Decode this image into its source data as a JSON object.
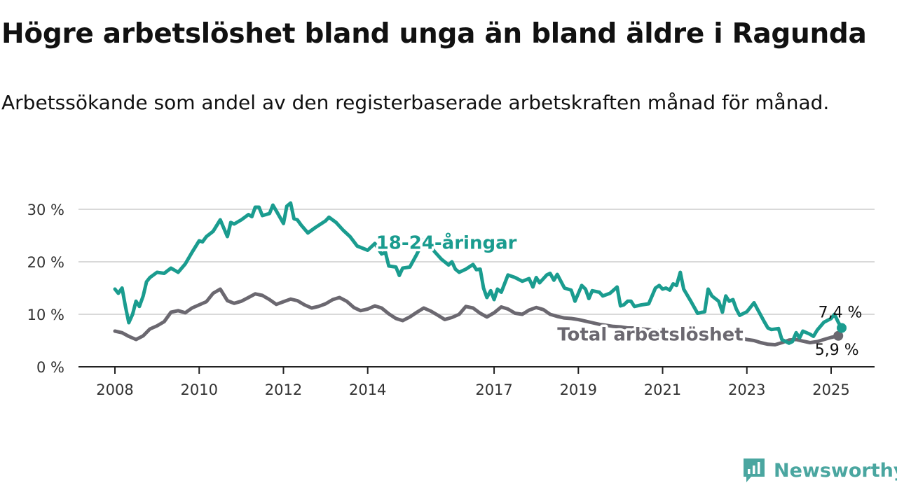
{
  "title": "Högre arbetslöshet bland unga än bland äldre i Ragunda",
  "subtitle": "Arbetssökande som andel av den registerbaserade arbetskraften månad för månad.",
  "brand": {
    "name": "Newsworthy",
    "icon": "newsworthy-logo-icon",
    "color": "#4aa6a0"
  },
  "chart_data": {
    "type": "line",
    "ylim": [
      0,
      30
    ],
    "xlim": [
      2008.0,
      2025.25
    ],
    "y_ticks": [
      {
        "v": 0,
        "label": "0 %"
      },
      {
        "v": 10,
        "label": "10 %"
      },
      {
        "v": 20,
        "label": "20 %"
      },
      {
        "v": 30,
        "label": "30 %"
      }
    ],
    "x_ticks": [
      {
        "v": 2008,
        "label": "2008"
      },
      {
        "v": 2010,
        "label": "2010"
      },
      {
        "v": 2012,
        "label": "2012"
      },
      {
        "v": 2014,
        "label": "2014"
      },
      {
        "v": 2017,
        "label": "2017"
      },
      {
        "v": 2019,
        "label": "2019"
      },
      {
        "v": 2021,
        "label": "2021"
      },
      {
        "v": 2023,
        "label": "2023"
      },
      {
        "v": 2025,
        "label": "2025"
      }
    ],
    "grid": true,
    "series": [
      {
        "name": "Total arbetslöshet",
        "color": "#6b6870",
        "end_label": "5,9 %",
        "points": [
          [
            2008.0,
            6.8
          ],
          [
            2008.17,
            6.5
          ],
          [
            2008.33,
            5.8
          ],
          [
            2008.5,
            5.2
          ],
          [
            2008.67,
            5.9
          ],
          [
            2008.83,
            7.2
          ],
          [
            2009.0,
            7.8
          ],
          [
            2009.17,
            8.6
          ],
          [
            2009.33,
            10.4
          ],
          [
            2009.5,
            10.7
          ],
          [
            2009.67,
            10.3
          ],
          [
            2009.83,
            11.2
          ],
          [
            2010.0,
            11.8
          ],
          [
            2010.17,
            12.4
          ],
          [
            2010.33,
            14.0
          ],
          [
            2010.5,
            14.8
          ],
          [
            2010.67,
            12.6
          ],
          [
            2010.83,
            12.1
          ],
          [
            2011.0,
            12.5
          ],
          [
            2011.17,
            13.2
          ],
          [
            2011.33,
            13.9
          ],
          [
            2011.5,
            13.6
          ],
          [
            2011.67,
            12.8
          ],
          [
            2011.83,
            11.9
          ],
          [
            2012.0,
            12.4
          ],
          [
            2012.17,
            12.9
          ],
          [
            2012.33,
            12.6
          ],
          [
            2012.5,
            11.8
          ],
          [
            2012.67,
            11.2
          ],
          [
            2012.83,
            11.5
          ],
          [
            2013.0,
            12.0
          ],
          [
            2013.17,
            12.8
          ],
          [
            2013.33,
            13.2
          ],
          [
            2013.5,
            12.5
          ],
          [
            2013.67,
            11.3
          ],
          [
            2013.83,
            10.7
          ],
          [
            2014.0,
            11.0
          ],
          [
            2014.17,
            11.6
          ],
          [
            2014.33,
            11.2
          ],
          [
            2014.5,
            10.1
          ],
          [
            2014.67,
            9.2
          ],
          [
            2014.83,
            8.8
          ],
          [
            2015.0,
            9.5
          ],
          [
            2015.17,
            10.4
          ],
          [
            2015.33,
            11.2
          ],
          [
            2015.5,
            10.6
          ],
          [
            2015.67,
            9.8
          ],
          [
            2015.83,
            9.0
          ],
          [
            2016.0,
            9.4
          ],
          [
            2016.17,
            10.0
          ],
          [
            2016.33,
            11.5
          ],
          [
            2016.5,
            11.2
          ],
          [
            2016.67,
            10.2
          ],
          [
            2016.83,
            9.5
          ],
          [
            2017.0,
            10.3
          ],
          [
            2017.17,
            11.4
          ],
          [
            2017.33,
            11.0
          ],
          [
            2017.5,
            10.2
          ],
          [
            2017.67,
            10.0
          ],
          [
            2017.83,
            10.8
          ],
          [
            2018.0,
            11.3
          ],
          [
            2018.17,
            10.9
          ],
          [
            2018.33,
            10.0
          ],
          [
            2018.5,
            9.6
          ],
          [
            2018.67,
            9.3
          ],
          [
            2018.83,
            9.2
          ],
          [
            2019.0,
            9.0
          ],
          [
            2019.17,
            8.7
          ],
          [
            2019.33,
            8.4
          ],
          [
            2019.5,
            8.1
          ],
          [
            2019.67,
            7.9
          ],
          [
            2019.83,
            7.7
          ],
          [
            2020.0,
            7.6
          ],
          [
            2020.17,
            7.4
          ],
          [
            2020.33,
            7.4
          ],
          [
            2020.5,
            7.2
          ],
          [
            2020.67,
            7.1
          ],
          [
            2020.83,
            6.9
          ],
          [
            2021.0,
            6.8
          ],
          [
            2021.17,
            6.5
          ],
          [
            2021.33,
            6.2
          ],
          [
            2021.5,
            5.8
          ],
          [
            2021.67,
            6.2
          ],
          [
            2021.83,
            6.6
          ],
          [
            2022.0,
            6.9
          ],
          [
            2022.17,
            6.8
          ],
          [
            2022.33,
            6.2
          ],
          [
            2022.5,
            5.6
          ],
          [
            2022.67,
            5.3
          ],
          [
            2022.83,
            5.5
          ],
          [
            2023.0,
            5.2
          ],
          [
            2023.17,
            5.0
          ],
          [
            2023.33,
            4.6
          ],
          [
            2023.5,
            4.3
          ],
          [
            2023.67,
            4.2
          ],
          [
            2023.83,
            4.6
          ],
          [
            2024.0,
            5.1
          ],
          [
            2024.17,
            5.2
          ],
          [
            2024.33,
            4.9
          ],
          [
            2024.5,
            4.6
          ],
          [
            2024.67,
            4.8
          ],
          [
            2024.83,
            5.2
          ],
          [
            2025.0,
            5.6
          ],
          [
            2025.17,
            5.9
          ]
        ]
      },
      {
        "name": "18-24-åringar",
        "color": "#1a9c8f",
        "end_label": "7,4 %",
        "points": [
          [
            2008.0,
            14.8
          ],
          [
            2008.08,
            14.0
          ],
          [
            2008.17,
            15.0
          ],
          [
            2008.25,
            11.5
          ],
          [
            2008.33,
            8.4
          ],
          [
            2008.42,
            10.0
          ],
          [
            2008.5,
            12.5
          ],
          [
            2008.58,
            11.5
          ],
          [
            2008.67,
            13.5
          ],
          [
            2008.75,
            16.2
          ],
          [
            2008.83,
            17.0
          ],
          [
            2009.0,
            18.0
          ],
          [
            2009.17,
            17.8
          ],
          [
            2009.33,
            18.8
          ],
          [
            2009.5,
            18.0
          ],
          [
            2009.67,
            19.6
          ],
          [
            2009.83,
            21.8
          ],
          [
            2010.0,
            24.0
          ],
          [
            2010.08,
            23.8
          ],
          [
            2010.17,
            24.8
          ],
          [
            2010.33,
            25.8
          ],
          [
            2010.5,
            28.0
          ],
          [
            2010.58,
            26.5
          ],
          [
            2010.67,
            24.8
          ],
          [
            2010.75,
            27.5
          ],
          [
            2010.83,
            27.2
          ],
          [
            2011.0,
            28.0
          ],
          [
            2011.17,
            29.0
          ],
          [
            2011.25,
            28.6
          ],
          [
            2011.33,
            30.4
          ],
          [
            2011.42,
            30.4
          ],
          [
            2011.5,
            28.8
          ],
          [
            2011.67,
            29.2
          ],
          [
            2011.75,
            30.8
          ],
          [
            2011.83,
            29.7
          ],
          [
            2012.0,
            27.3
          ],
          [
            2012.08,
            30.6
          ],
          [
            2012.17,
            31.2
          ],
          [
            2012.25,
            28.2
          ],
          [
            2012.33,
            28.0
          ],
          [
            2012.42,
            27.0
          ],
          [
            2012.58,
            25.5
          ],
          [
            2012.75,
            26.5
          ],
          [
            2013.0,
            27.8
          ],
          [
            2013.08,
            28.5
          ],
          [
            2013.25,
            27.5
          ],
          [
            2013.42,
            26.0
          ],
          [
            2013.58,
            24.8
          ],
          [
            2013.75,
            23.0
          ],
          [
            2014.0,
            22.2
          ],
          [
            2014.17,
            23.5
          ],
          [
            2014.25,
            22.5
          ],
          [
            2014.33,
            21.5
          ],
          [
            2014.42,
            21.8
          ],
          [
            2014.5,
            19.2
          ],
          [
            2014.67,
            19.0
          ],
          [
            2014.75,
            17.4
          ],
          [
            2014.83,
            18.8
          ],
          [
            2015.0,
            19.0
          ],
          [
            2015.17,
            21.5
          ],
          [
            2015.33,
            24.2
          ],
          [
            2015.5,
            23.0
          ],
          [
            2015.58,
            22.0
          ],
          [
            2015.75,
            20.5
          ],
          [
            2015.92,
            19.4
          ],
          [
            2016.0,
            20.0
          ],
          [
            2016.08,
            18.6
          ],
          [
            2016.17,
            18.0
          ],
          [
            2016.33,
            18.6
          ],
          [
            2016.5,
            19.5
          ],
          [
            2016.58,
            18.5
          ],
          [
            2016.67,
            18.6
          ],
          [
            2016.75,
            15.0
          ],
          [
            2016.83,
            13.2
          ],
          [
            2016.92,
            14.5
          ],
          [
            2017.0,
            12.8
          ],
          [
            2017.08,
            14.8
          ],
          [
            2017.17,
            14.2
          ],
          [
            2017.33,
            17.5
          ],
          [
            2017.5,
            17.0
          ],
          [
            2017.67,
            16.3
          ],
          [
            2017.83,
            16.8
          ],
          [
            2017.92,
            15.2
          ],
          [
            2018.0,
            17.0
          ],
          [
            2018.08,
            16.0
          ],
          [
            2018.25,
            17.5
          ],
          [
            2018.33,
            17.8
          ],
          [
            2018.42,
            16.5
          ],
          [
            2018.5,
            17.6
          ],
          [
            2018.67,
            15.0
          ],
          [
            2018.83,
            14.6
          ],
          [
            2018.92,
            12.5
          ],
          [
            2019.08,
            15.5
          ],
          [
            2019.17,
            14.8
          ],
          [
            2019.25,
            13.0
          ],
          [
            2019.33,
            14.5
          ],
          [
            2019.5,
            14.2
          ],
          [
            2019.58,
            13.5
          ],
          [
            2019.75,
            14.0
          ],
          [
            2019.92,
            15.2
          ],
          [
            2020.0,
            11.6
          ],
          [
            2020.08,
            11.8
          ],
          [
            2020.17,
            12.5
          ],
          [
            2020.25,
            12.5
          ],
          [
            2020.33,
            11.5
          ],
          [
            2020.5,
            11.8
          ],
          [
            2020.67,
            12.0
          ],
          [
            2020.83,
            15.0
          ],
          [
            2020.92,
            15.5
          ],
          [
            2021.0,
            14.8
          ],
          [
            2021.08,
            15.0
          ],
          [
            2021.17,
            14.6
          ],
          [
            2021.25,
            15.8
          ],
          [
            2021.33,
            15.5
          ],
          [
            2021.42,
            18.0
          ],
          [
            2021.5,
            14.8
          ],
          [
            2021.67,
            12.5
          ],
          [
            2021.83,
            10.2
          ],
          [
            2022.0,
            10.5
          ],
          [
            2022.08,
            14.8
          ],
          [
            2022.17,
            13.5
          ],
          [
            2022.33,
            12.5
          ],
          [
            2022.42,
            10.4
          ],
          [
            2022.5,
            13.5
          ],
          [
            2022.58,
            12.5
          ],
          [
            2022.67,
            12.8
          ],
          [
            2022.75,
            11.0
          ],
          [
            2022.83,
            9.8
          ],
          [
            2023.0,
            10.5
          ],
          [
            2023.17,
            12.2
          ],
          [
            2023.25,
            11.0
          ],
          [
            2023.42,
            8.5
          ],
          [
            2023.5,
            7.4
          ],
          [
            2023.58,
            7.1
          ],
          [
            2023.75,
            7.3
          ],
          [
            2023.83,
            5.2
          ],
          [
            2024.0,
            4.5
          ],
          [
            2024.08,
            4.8
          ],
          [
            2024.17,
            6.5
          ],
          [
            2024.25,
            5.5
          ],
          [
            2024.33,
            6.8
          ],
          [
            2024.5,
            6.2
          ],
          [
            2024.58,
            5.8
          ],
          [
            2024.67,
            7.0
          ],
          [
            2024.83,
            8.5
          ],
          [
            2025.0,
            9.2
          ],
          [
            2025.08,
            10.0
          ],
          [
            2025.17,
            8.5
          ],
          [
            2025.25,
            7.4
          ]
        ]
      }
    ],
    "series_labels": [
      {
        "text": "18-24-åringar",
        "series": 1,
        "x": 2014.2,
        "y": 23.7
      },
      {
        "text": "Total arbetslöshet",
        "series": 0,
        "x": 2018.5,
        "y": 6.2
      }
    ]
  }
}
